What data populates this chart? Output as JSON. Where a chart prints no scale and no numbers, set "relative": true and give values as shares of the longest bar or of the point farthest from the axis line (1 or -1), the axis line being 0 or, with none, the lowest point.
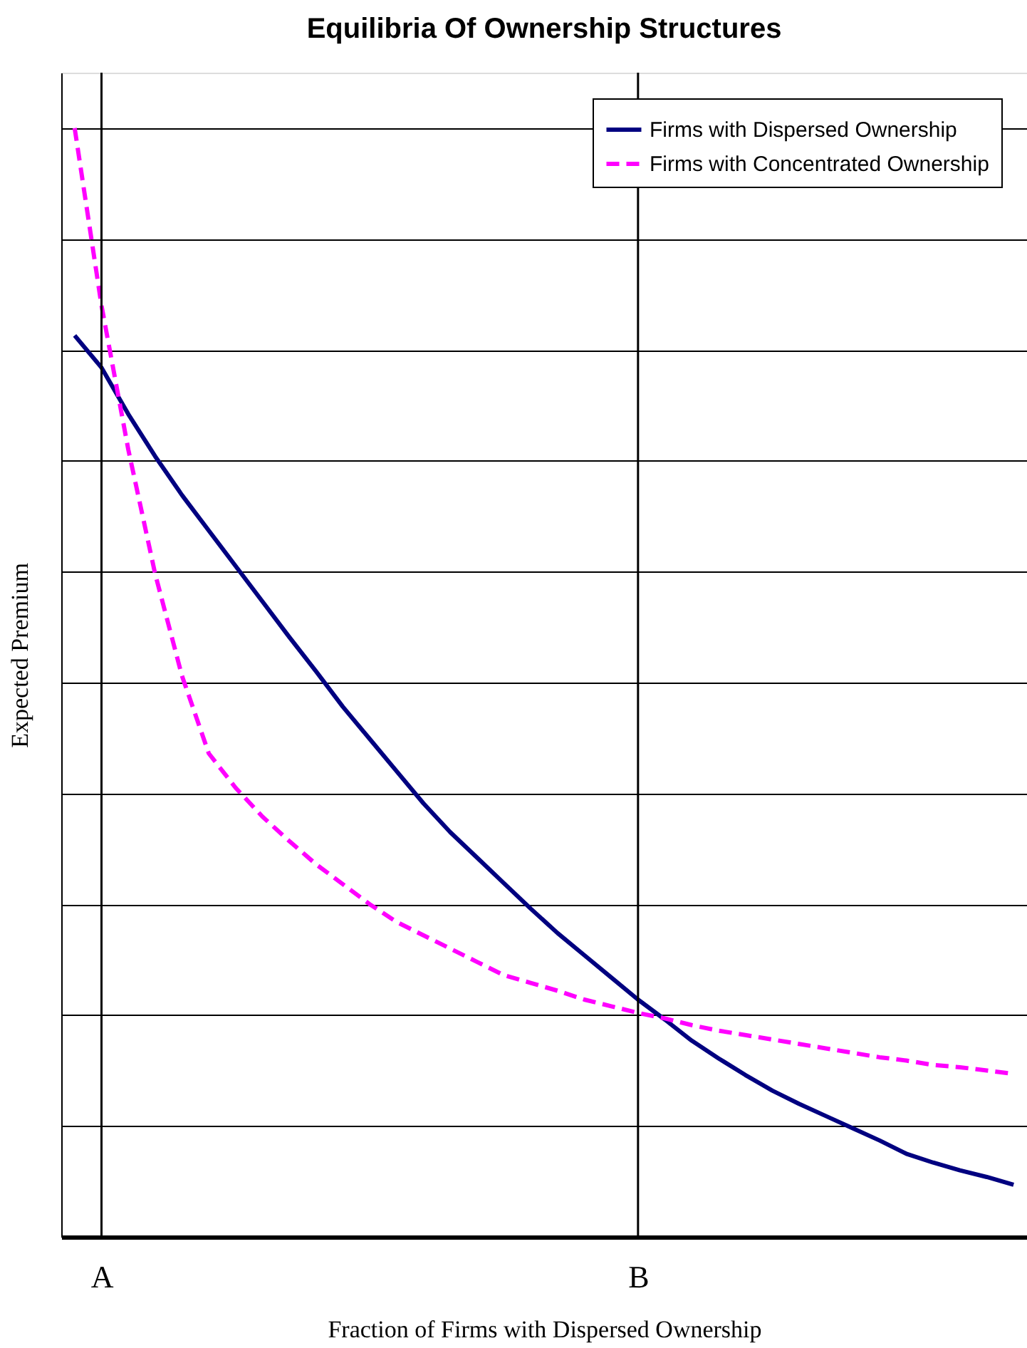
{
  "chart_data": {
    "type": "line",
    "title": "Equilibria Of Ownership Structures",
    "xlabel": "Fraction of Firms with Dispersed Ownership",
    "ylabel": "Expected Premium",
    "relative": true,
    "grid": "y",
    "legend": "top right",
    "tick_labels": "x",
    "categories": [
      null,
      "A",
      null,
      null,
      null,
      null,
      null,
      null,
      null,
      null,
      null,
      null,
      null,
      null,
      null,
      null,
      null,
      null,
      null,
      null,
      null,
      "B",
      null,
      null,
      null,
      null,
      null,
      null,
      null,
      null,
      null,
      null,
      null,
      null,
      null,
      null
    ],
    "ref_lines": [
      {
        "axis": "x",
        "value": "A",
        "color": "#000000"
      },
      {
        "axis": "x",
        "value": "B",
        "color": "#000000"
      }
    ],
    "series": [
      {
        "name": "Firms with Dispersed Ownership",
        "color": "#000080",
        "line_style": "solid",
        "values": [
          0.813,
          0.784,
          0.742,
          0.704,
          0.669,
          0.637,
          0.605,
          0.573,
          0.541,
          0.51,
          0.478,
          0.449,
          0.42,
          0.391,
          0.365,
          0.342,
          0.319,
          0.296,
          0.274,
          0.254,
          0.234,
          0.214,
          0.196,
          0.177,
          0.161,
          0.146,
          0.132,
          0.12,
          0.109,
          0.098,
          0.087,
          0.075,
          0.067,
          0.06,
          0.054,
          0.047
        ]
      },
      {
        "name": "Firms with Concentrated Ownership",
        "color": "#ff00ff",
        "line_style": "dashed",
        "values": [
          1.0,
          0.84,
          0.71,
          0.598,
          0.506,
          0.436,
          0.405,
          0.379,
          0.357,
          0.336,
          0.318,
          0.3,
          0.284,
          0.272,
          0.26,
          0.248,
          0.236,
          0.229,
          0.222,
          0.214,
          0.208,
          0.202,
          0.197,
          0.191,
          0.186,
          0.182,
          0.178,
          0.174,
          0.17,
          0.166,
          0.162,
          0.159,
          0.155,
          0.153,
          0.15,
          0.147
        ]
      }
    ]
  }
}
